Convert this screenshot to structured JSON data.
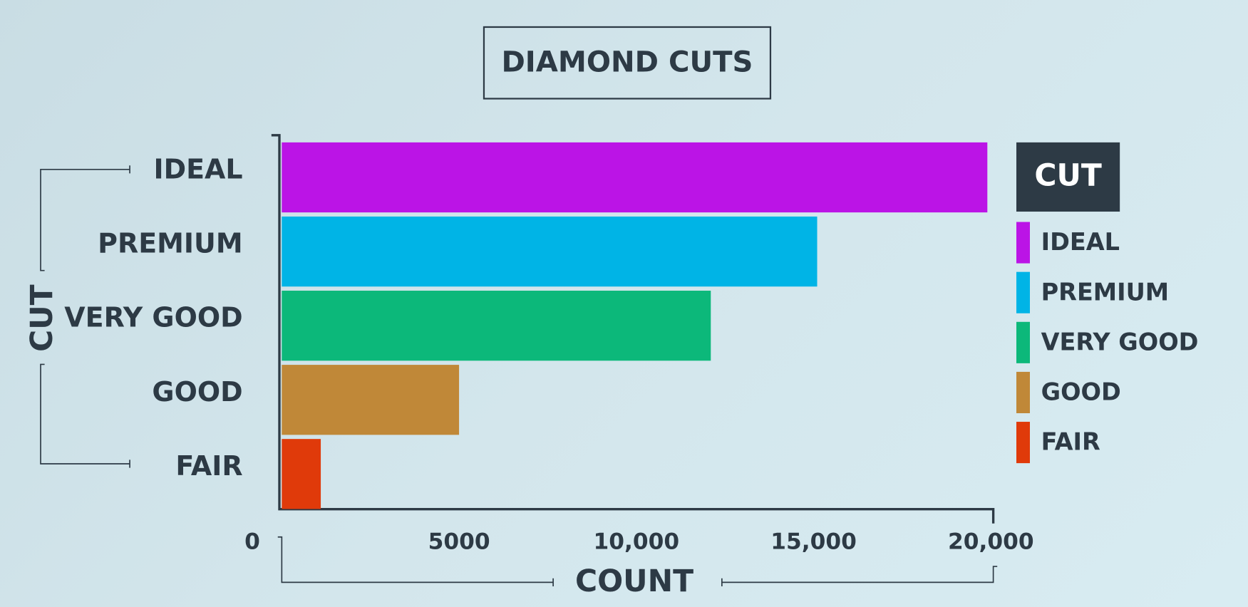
{
  "chart_data": {
    "type": "hbar",
    "title": "DIAMOND CUTS",
    "categories": [
      "IDEAL",
      "PREMIUM",
      "VERY GOOD",
      "GOOD",
      "FAIR"
    ],
    "values": [
      19900,
      15100,
      12100,
      5000,
      1100
    ],
    "colors": [
      "#bb14e6",
      "#00b4e6",
      "#0cb87a",
      "#c08838",
      "#e03a0a"
    ],
    "x_label": "COUNT",
    "y_label": "CUT",
    "legend_title": "CUT",
    "legend": "right",
    "xlim": [
      0,
      20000
    ],
    "xticks": [
      0,
      5000,
      {
        "value": 10000,
        "label": "10,000"
      },
      {
        "value": 15000,
        "label": "15,000"
      },
      {
        "value": 20000,
        "label": "20,000"
      }
    ],
    "grid": false
  }
}
